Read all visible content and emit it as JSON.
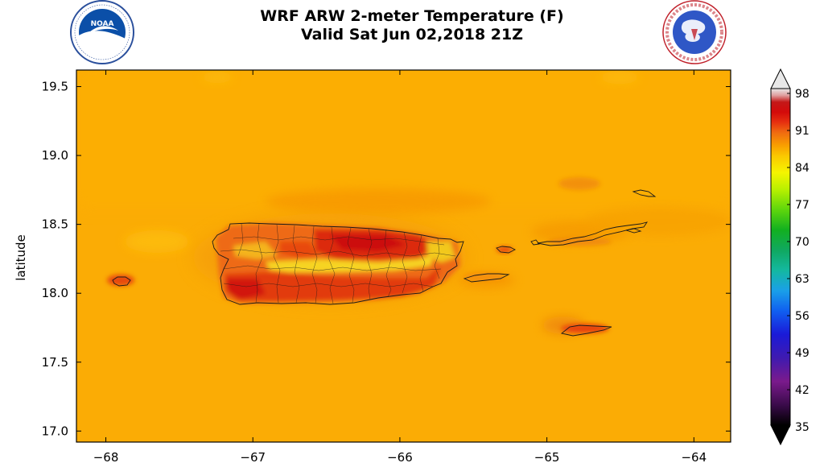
{
  "title": {
    "line1": "WRF ARW 2-meter Temperature (F)",
    "line2": "Valid Sat Jun 02,2018 21Z"
  },
  "logos": {
    "left": {
      "name": "NOAA",
      "icon": "noaa-logo-icon",
      "ring_text": "NATIONAL OCEANIC AND ATMOSPHERIC ADMINISTRATION • U.S. DEPARTMENT OF COMMERCE"
    },
    "right": {
      "name": "NWS",
      "icon": "nws-logo-icon",
      "ring_text": "NATIONAL WEATHER SERVICE"
    }
  },
  "axes": {
    "ylabel": "latitude",
    "x_ticks": [
      -68,
      -67,
      -66,
      -65,
      -64
    ],
    "x_tick_labels": [
      "−68",
      "−67",
      "−66",
      "−65",
      "−64"
    ],
    "y_ticks": [
      17.0,
      17.5,
      18.0,
      18.5,
      19.0,
      19.5
    ],
    "y_tick_labels": [
      "17.0",
      "17.5",
      "18.0",
      "18.5",
      "19.0",
      "19.5"
    ],
    "xlim": [
      -68.2,
      -63.75
    ],
    "ylim": [
      16.92,
      19.62
    ]
  },
  "colorbar": {
    "labels": [
      "98",
      "91",
      "84",
      "77",
      "70",
      "63",
      "56",
      "49",
      "42",
      "35"
    ],
    "range": [
      35,
      98
    ]
  },
  "colors": {
    "background_field": "#fbac05",
    "ocean_warm": "#f9a203",
    "land_hot": "#e84f10",
    "land_hottest": "#d81c10",
    "land_warm": "#f5d020",
    "coastline": "#1a1a1a"
  }
}
